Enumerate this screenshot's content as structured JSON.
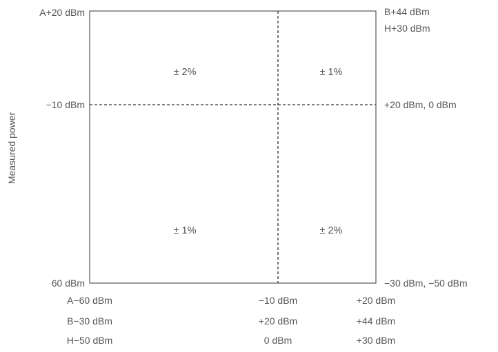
{
  "diagram": {
    "y_axis_label": "Measured power",
    "left_labels": {
      "top": "A+20 dBm",
      "middle": "−10 dBm",
      "bottom": "60 dBm"
    },
    "right_labels": {
      "top_line1": "B+44 dBm",
      "top_line2": "H+30 dBm",
      "middle": "+20 dBm, 0 dBm",
      "bottom": "−30 dBm, −50 dBm"
    },
    "cells": {
      "top_left": "± 2%",
      "top_right": "± 1%",
      "bottom_left": "± 1%",
      "bottom_right": "± 2%"
    },
    "bottom_labels": {
      "col1": [
        "A−60 dBm",
        "B−30 dBm",
        "H−50 dBm"
      ],
      "col2": [
        "−10 dBm",
        "+20 dBm",
        "0 dBm"
      ],
      "col3": [
        "+20 dBm",
        "+44 dBm",
        "+30 dBm"
      ]
    }
  }
}
